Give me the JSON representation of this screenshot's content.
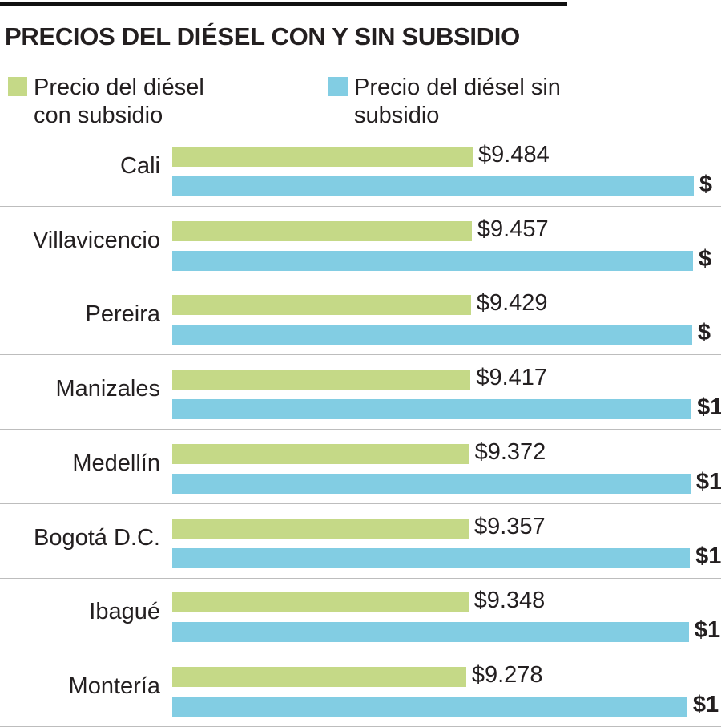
{
  "chart_data": {
    "type": "bar",
    "orientation": "horizontal",
    "title": "PRECIOS DEL DIÉSEL CON Y SIN SUBSIDIO",
    "categories": [
      "Cali",
      "Villavicencio",
      "Pereira",
      "Manizales",
      "Medellín",
      "Bogotá D.C.",
      "Ibagué",
      "Montería"
    ],
    "series": [
      {
        "name": "Precio del diésel con subsidio",
        "color": "#c5d987",
        "values": [
          9484,
          9457,
          9429,
          9417,
          9372,
          9357,
          9348,
          9278
        ],
        "labels": [
          "$9.484",
          "$9.457",
          "$9.429",
          "$9.417",
          "$9.372",
          "$9.357",
          "$9.348",
          "$9.278"
        ]
      },
      {
        "name": "Precio del diésel sin subsidio",
        "color": "#82cde3",
        "values": [
          16460,
          16440,
          16410,
          16390,
          16360,
          16340,
          16310,
          16260
        ],
        "labels": [
          "$",
          "$",
          "$",
          "$1",
          "$1",
          "$1",
          "$1",
          "$1"
        ]
      }
    ],
    "xlim": [
      0,
      16500
    ],
    "grid": false,
    "legend_position": "top"
  }
}
